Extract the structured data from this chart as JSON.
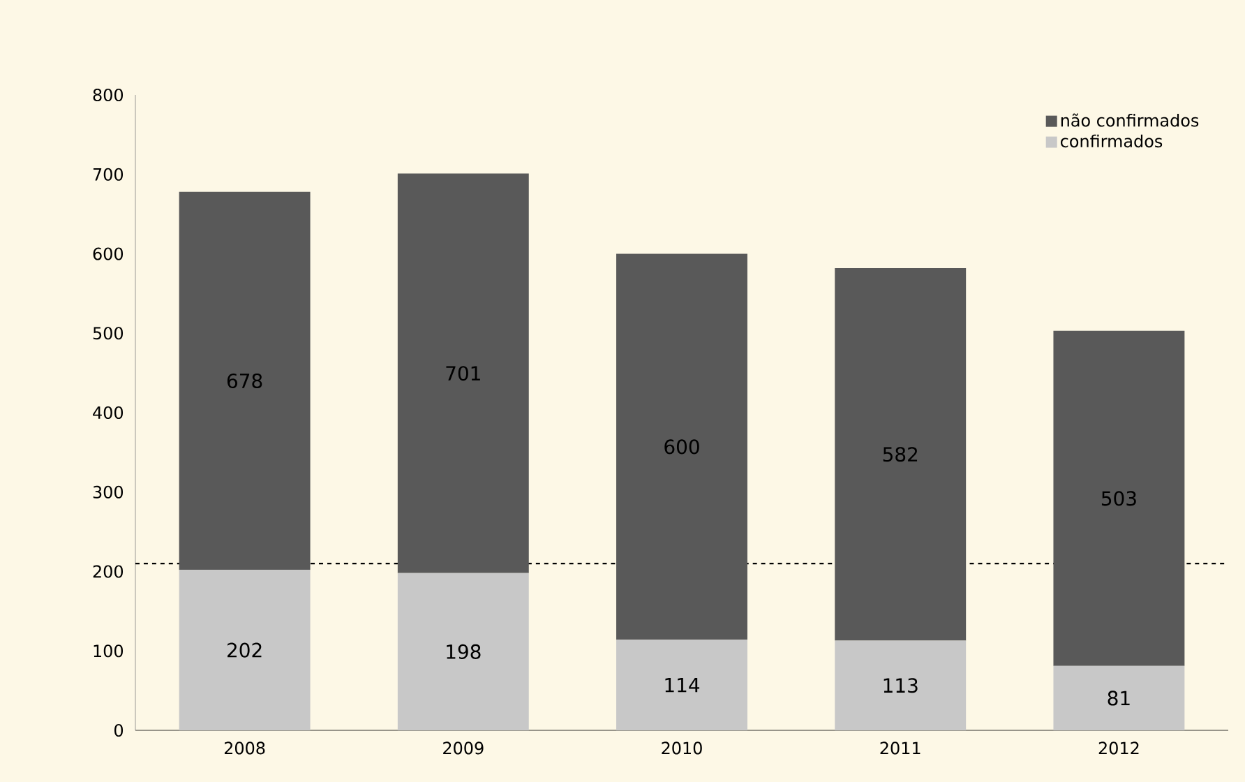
{
  "chart_data": {
    "type": "bar",
    "stacked": true,
    "categories": [
      "2008",
      "2009",
      "2010",
      "2011",
      "2012"
    ],
    "series": [
      {
        "name": "confirmados",
        "color": "#c8c8c8",
        "values": [
          202,
          198,
          114,
          113,
          81
        ],
        "value_labels": [
          "202",
          "198",
          "114",
          "113",
          "81"
        ]
      },
      {
        "name": "não confirmados",
        "color": "#595959",
        "values": [
          476,
          503,
          486,
          469,
          422
        ]
      }
    ],
    "totals": [
      "678",
      "701",
      "600",
      "582",
      "503"
    ],
    "ylim": [
      0,
      800
    ],
    "yticks": [
      0,
      100,
      200,
      300,
      400,
      500,
      600,
      700,
      800
    ],
    "ref_lines": [
      {
        "axis": "y",
        "value": 210,
        "line_style": "dashed",
        "color": "#000000"
      }
    ],
    "legend": "top right"
  }
}
